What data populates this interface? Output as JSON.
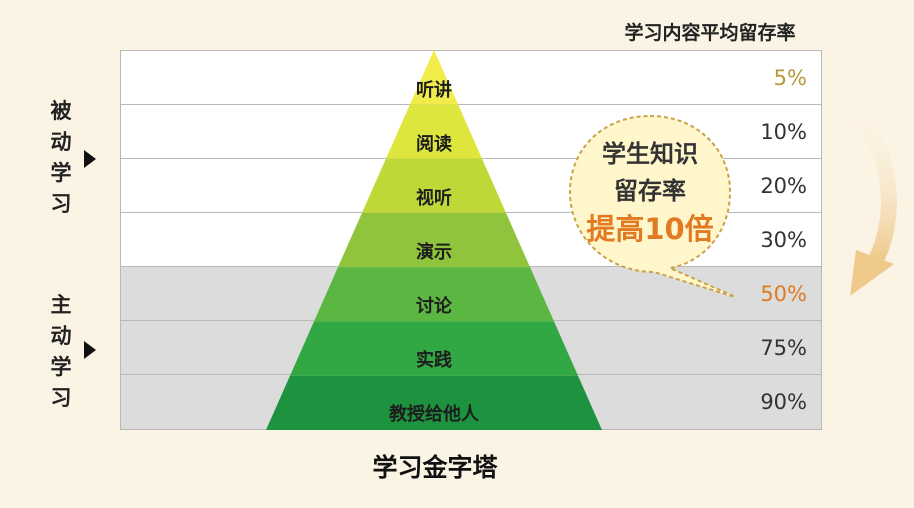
{
  "header": {
    "title": "学习内容平均留存率"
  },
  "levels": [
    {
      "label": "听讲",
      "percent": "5%",
      "zone": "passive",
      "color": "#f1ec4a",
      "pct_color": "#b8963c"
    },
    {
      "label": "阅读",
      "percent": "10%",
      "zone": "passive",
      "color": "#dde63c",
      "pct_color": "#333333"
    },
    {
      "label": "视听",
      "percent": "20%",
      "zone": "passive",
      "color": "#bfd737",
      "pct_color": "#333333"
    },
    {
      "label": "演示",
      "percent": "30%",
      "zone": "passive",
      "color": "#8fc43c",
      "pct_color": "#333333"
    },
    {
      "label": "讨论",
      "percent": "50%",
      "zone": "active",
      "color": "#5bb741",
      "pct_color": "#e17a22"
    },
    {
      "label": "实践",
      "percent": "75%",
      "zone": "active",
      "color": "#32a844",
      "pct_color": "#333333"
    },
    {
      "label": "教授给他人",
      "percent": "90%",
      "zone": "active",
      "color": "#1d9340",
      "pct_color": "#333333"
    }
  ],
  "side_labels": {
    "passive": "被动学习",
    "active": "主动学习"
  },
  "bubble": {
    "line1": "学生知识",
    "line2": "留存率",
    "highlight": "提高10倍"
  },
  "footer": {
    "title": "学习金字塔"
  },
  "colors": {
    "background": "#fbf3e4",
    "active_row": "#dcdcdc",
    "accent_orange": "#e17a22",
    "arrow_tan": "#efc98a"
  }
}
